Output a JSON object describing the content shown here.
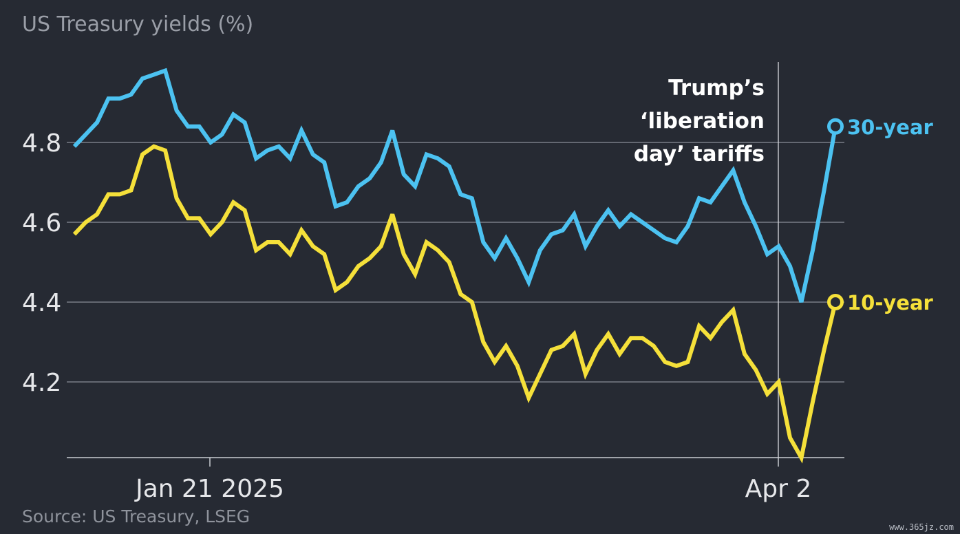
{
  "chart_data": {
    "type": "line",
    "title": "US Treasury yields (%)",
    "source": "Source: US Treasury, LSEG",
    "y_axis": {
      "min": 4.0,
      "max": 4.98,
      "ticks": [
        4.2,
        4.4,
        4.6,
        4.8
      ],
      "tick_labels": [
        "4.2",
        "4.4",
        "4.6",
        "4.8"
      ]
    },
    "x_axis": {
      "tick_labels": [
        "Jan 21 2025",
        "Apr 2"
      ]
    },
    "grid": true,
    "annotation": {
      "lines": [
        "Trump’s",
        "‘liberation",
        "day’ tariffs"
      ],
      "date": "Apr 2"
    },
    "series": [
      {
        "name": "30-year",
        "color": "#4cc2f1",
        "values": [
          4.79,
          4.82,
          4.85,
          4.91,
          4.91,
          4.92,
          4.96,
          4.97,
          4.98,
          4.88,
          4.84,
          4.84,
          4.8,
          4.82,
          4.87,
          4.85,
          4.76,
          4.78,
          4.79,
          4.76,
          4.83,
          4.77,
          4.75,
          4.64,
          4.65,
          4.69,
          4.71,
          4.75,
          4.83,
          4.72,
          4.69,
          4.77,
          4.76,
          4.74,
          4.67,
          4.66,
          4.55,
          4.51,
          4.56,
          4.51,
          4.45,
          4.53,
          4.57,
          4.58,
          4.62,
          4.54,
          4.59,
          4.63,
          4.59,
          4.62,
          4.6,
          4.58,
          4.56,
          4.55,
          4.59,
          4.66,
          4.65,
          4.69,
          4.73,
          4.65,
          4.59,
          4.52,
          4.54,
          4.49,
          4.4,
          4.53,
          4.68,
          4.84
        ]
      },
      {
        "name": "10-year",
        "color": "#f5e03a",
        "values": [
          4.57,
          4.6,
          4.62,
          4.67,
          4.67,
          4.68,
          4.77,
          4.79,
          4.78,
          4.66,
          4.61,
          4.61,
          4.57,
          4.6,
          4.65,
          4.63,
          4.53,
          4.55,
          4.55,
          4.52,
          4.58,
          4.54,
          4.52,
          4.43,
          4.45,
          4.49,
          4.51,
          4.54,
          4.62,
          4.52,
          4.47,
          4.55,
          4.53,
          4.5,
          4.42,
          4.4,
          4.3,
          4.25,
          4.29,
          4.24,
          4.16,
          4.22,
          4.28,
          4.29,
          4.32,
          4.22,
          4.28,
          4.32,
          4.27,
          4.31,
          4.31,
          4.29,
          4.25,
          4.24,
          4.25,
          4.34,
          4.31,
          4.35,
          4.38,
          4.27,
          4.23,
          4.17,
          4.2,
          4.06,
          4.01,
          4.15,
          4.28,
          4.4
        ]
      }
    ]
  },
  "watermark": "www.365jz.com"
}
